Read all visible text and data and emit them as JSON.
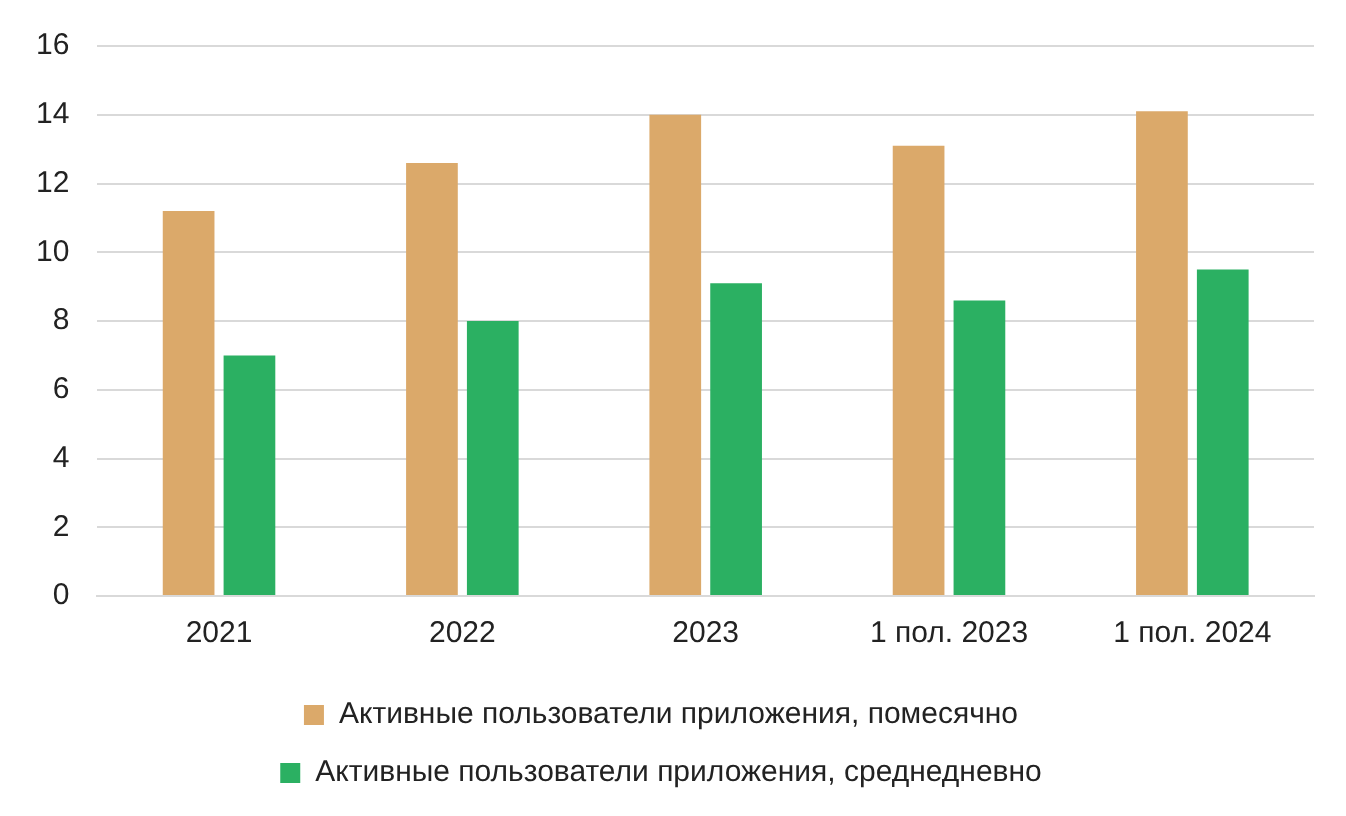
{
  "chart_data": {
    "type": "bar",
    "categories": [
      "2021",
      "2022",
      "2023",
      "1 пол. 2023",
      "1 пол. 2024"
    ],
    "series": [
      {
        "name": "Активные пользователи приложения, помесячно",
        "color": "#dba96a",
        "values": [
          11.2,
          12.6,
          14.0,
          13.1,
          14.1
        ]
      },
      {
        "name": "Активные пользователи приложения, среднедневно",
        "color": "#2bb062",
        "values": [
          7.0,
          8.0,
          9.1,
          8.6,
          9.5
        ]
      }
    ],
    "ylim": [
      0,
      16
    ],
    "yticks": [
      0,
      2,
      4,
      6,
      8,
      10,
      12,
      14,
      16
    ],
    "grid": "y",
    "legend": "bottom"
  }
}
